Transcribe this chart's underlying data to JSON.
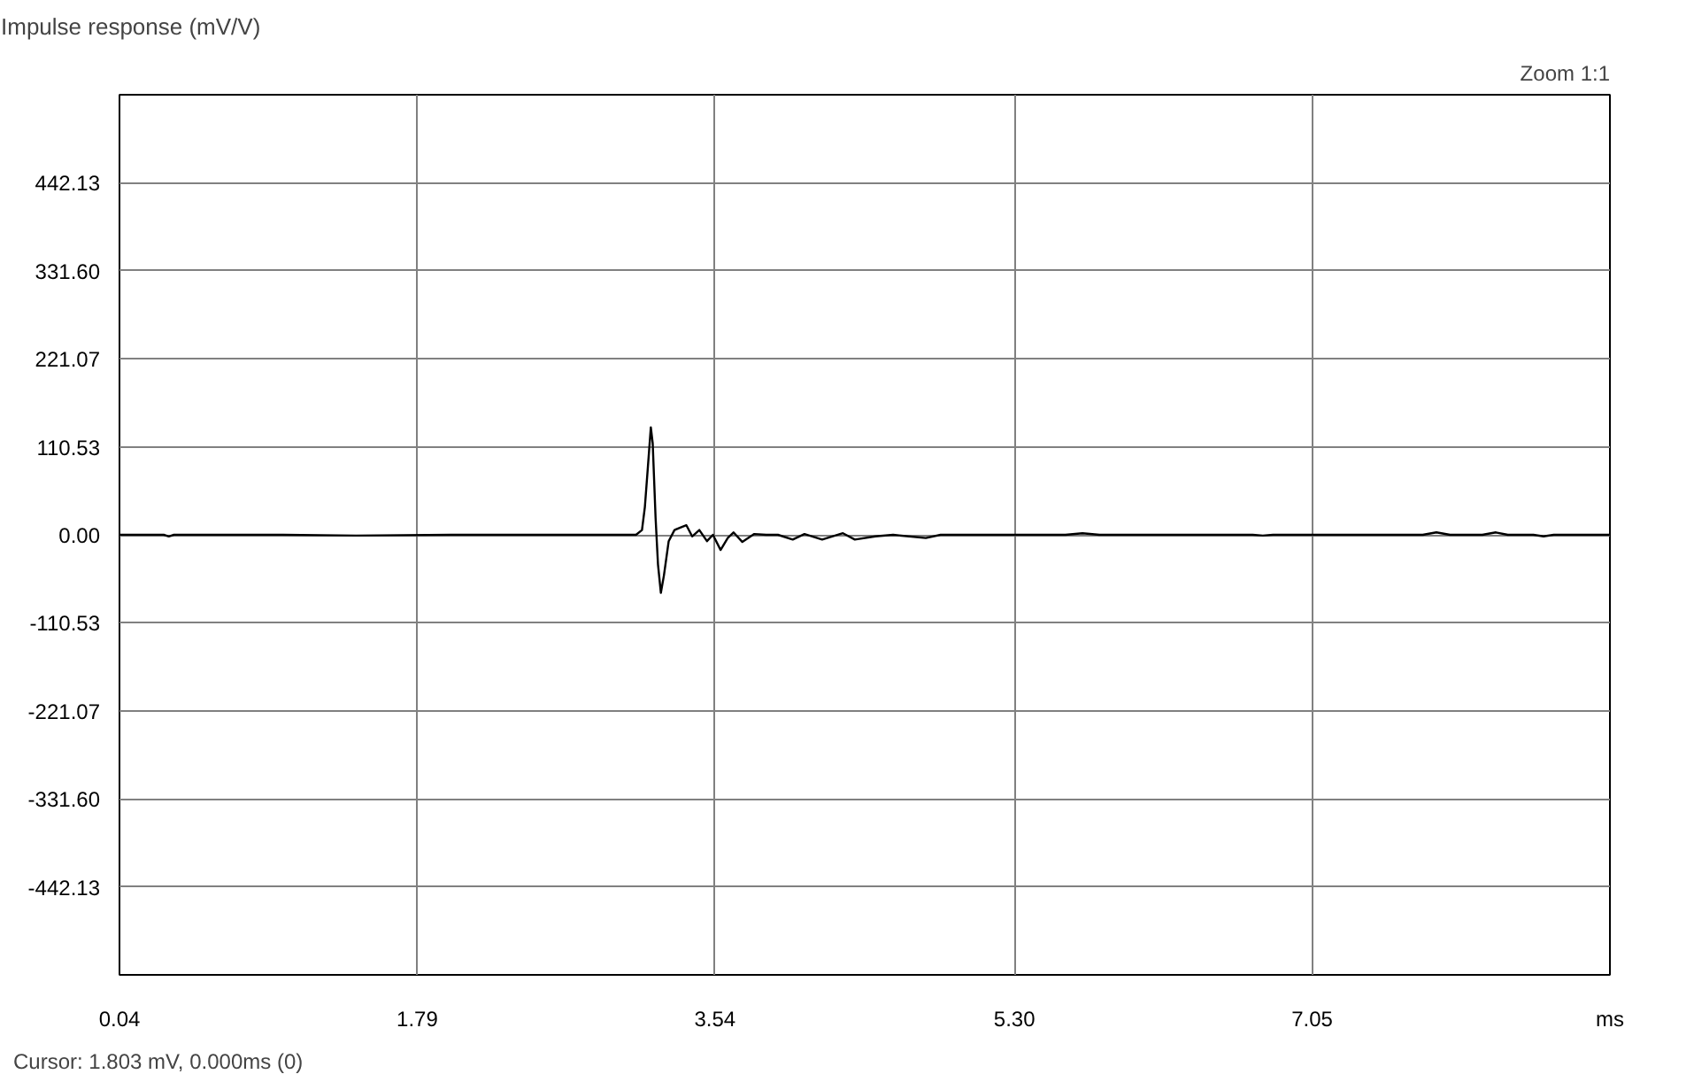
{
  "chart_data": {
    "type": "line",
    "title": "Impulse response (mV/V)",
    "annotations": [
      "Zoom 1:1",
      "Cursor: 1.803 mV, 0.000ms (0)"
    ],
    "x": [
      0.04,
      0.3,
      0.33,
      0.36,
      1.0,
      1.43,
      2.0,
      2.6,
      3.0,
      3.076,
      3.111,
      3.128,
      3.146,
      3.163,
      3.174,
      3.191,
      3.205,
      3.222,
      3.24,
      3.268,
      3.302,
      3.336,
      3.372,
      3.406,
      3.448,
      3.493,
      3.528,
      3.573,
      3.615,
      3.649,
      3.701,
      3.771,
      3.841,
      3.91,
      3.997,
      4.066,
      4.17,
      4.292,
      4.362,
      4.483,
      4.587,
      4.779,
      4.866,
      5.6,
      5.7,
      5.8,
      6.7,
      6.76,
      6.82,
      7.7,
      7.78,
      7.86,
      8.05,
      8.13,
      8.2,
      8.35,
      8.41,
      8.47,
      8.8
    ],
    "series": [
      {
        "color": "#000000",
        "values": [
          0,
          0,
          -2,
          0,
          0,
          -1,
          0,
          0,
          0,
          0,
          6,
          35,
          86,
          135,
          115,
          21,
          -37,
          -73,
          -51,
          -8,
          6,
          9,
          12,
          -2,
          6,
          -8,
          0,
          -19,
          -4,
          3,
          -9,
          1,
          0,
          0,
          -6,
          1,
          -6,
          2,
          -6,
          -2,
          0,
          -4,
          0,
          0,
          2,
          0,
          0,
          -1,
          0,
          0,
          3,
          0,
          0,
          3,
          0,
          0,
          -2,
          0,
          0
        ]
      }
    ],
    "xlim": [
      0.04,
      8.8
    ],
    "xticks": [
      0.04,
      1.79,
      3.54,
      {
        "value": 5.3,
        "label": "5.30"
      },
      7.05,
      {
        "value": 8.8,
        "label": "ms"
      }
    ],
    "ylim": [
      -552.66,
      552.66
    ],
    "yticks": [
      {
        "value": -442.13,
        "label": "-442.13"
      },
      {
        "value": -331.6,
        "label": "-331.60"
      },
      {
        "value": -221.07,
        "label": "-221.07"
      },
      {
        "value": -110.53,
        "label": "-110.53"
      },
      {
        "value": 0,
        "label": "0.00"
      },
      {
        "value": 110.53,
        "label": "110.53"
      },
      {
        "value": 221.07,
        "label": "221.07"
      },
      {
        "value": 331.6,
        "label": "331.60"
      },
      {
        "value": 442.13,
        "label": "442.13"
      }
    ],
    "grid": true,
    "marker": "none",
    "line_style": "solid"
  }
}
